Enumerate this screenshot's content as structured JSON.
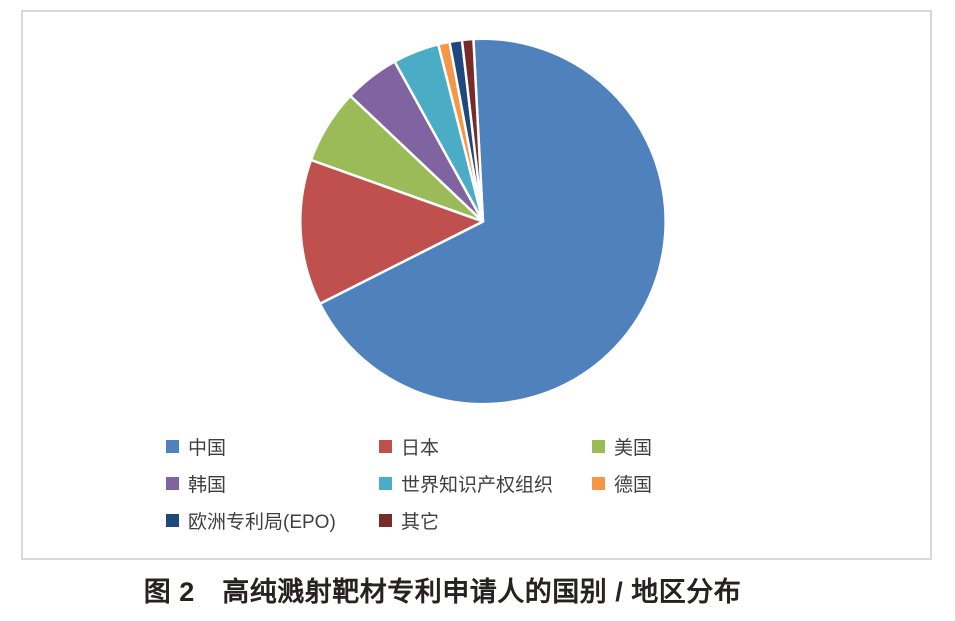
{
  "figure": {
    "caption": "图 2　高纯溅射靶材专利申请人的国别 / 地区分布"
  },
  "chart_data": {
    "type": "pie",
    "title": "",
    "unit": "percent",
    "start_angle_deg": -3,
    "direction": "clockwise",
    "legend_position": "inside-bottom-left",
    "legend_columns": 3,
    "slice_border_color": "#FFFFFF",
    "slices": [
      {
        "label": "中国",
        "value": 68.4,
        "color": "#4F81BD"
      },
      {
        "label": "日本",
        "value": 12.9,
        "color": "#C0504D"
      },
      {
        "label": "美国",
        "value": 6.6,
        "color": "#9BBB59"
      },
      {
        "label": "韩国",
        "value": 4.9,
        "color": "#8064A2"
      },
      {
        "label": "世界知识产权组织",
        "value": 4.1,
        "color": "#4BACC6"
      },
      {
        "label": "德国",
        "value": 1.0,
        "color": "#F79646"
      },
      {
        "label": "欧洲专利局(EPO)",
        "value": 1.1,
        "color": "#1F497D"
      },
      {
        "label": "其它",
        "value": 1.0,
        "color": "#772C2A"
      }
    ]
  }
}
